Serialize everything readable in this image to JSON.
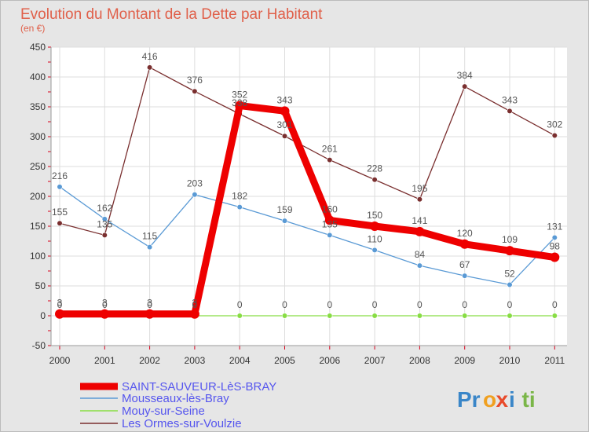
{
  "header": {
    "title": "Evolution du Montant de la Dette par Habitant",
    "subtitle": "(en €)"
  },
  "colors": {
    "background": "#e6e6e6",
    "plot_background": "#ffffff",
    "title": "#e0604a",
    "legend_text": "#5555ee",
    "axis_red_ticks": "#d9001b"
  },
  "logo": {
    "parts": [
      "Pr",
      "o",
      "x",
      "i",
      "ti"
    ],
    "colors": [
      "#3a86c8",
      "#f0a020",
      "#e84a2a",
      "#3a86c8",
      "#7ab648"
    ]
  },
  "chart_data": {
    "type": "line",
    "title": "Evolution du Montant de la Dette par Habitant",
    "subtitle": "(en €)",
    "xlabel": "",
    "ylabel": "",
    "categories": [
      "2000",
      "2001",
      "2002",
      "2003",
      "2004",
      "2005",
      "2006",
      "2007",
      "2008",
      "2009",
      "2010",
      "2011"
    ],
    "ylim": [
      -50,
      450
    ],
    "yticks": [
      "-50",
      "0",
      "50",
      "100",
      "150",
      "200",
      "250",
      "300",
      "350",
      "400",
      "450"
    ],
    "grid": true,
    "legend_position": "bottom-left",
    "series": [
      {
        "name": "SAINT-SAUVEUR-LèS-BRAY",
        "color": "#ee0000",
        "width": 9,
        "values": [
          3,
          3,
          3,
          3,
          352,
          343,
          160,
          150,
          141,
          120,
          109,
          98
        ],
        "labels": [
          "3",
          "3",
          "3",
          "3",
          "352",
          "343",
          "160",
          "150",
          "141",
          "120",
          "109",
          "98"
        ]
      },
      {
        "name": "Mousseaux-lès-Bray",
        "color": "#5a9ad5",
        "width": 1.3,
        "values": [
          216,
          162,
          115,
          203,
          182,
          159,
          135,
          110,
          84,
          67,
          52,
          131
        ],
        "labels": [
          "216",
          "162",
          "115",
          "203",
          "182",
          "159",
          "135",
          "110",
          "84",
          "67",
          "52",
          "131"
        ]
      },
      {
        "name": "Mouy-sur-Seine",
        "color": "#88dd44",
        "width": 1.3,
        "values": [
          0,
          0,
          0,
          0,
          0,
          0,
          0,
          0,
          0,
          0,
          0,
          0
        ],
        "labels": [
          "0",
          "0",
          "0",
          "0",
          "0",
          "0",
          "0",
          "0",
          "0",
          "0",
          "0",
          "0"
        ]
      },
      {
        "name": "Les Ormes-sur-Voulzie",
        "color": "#7a2f2f",
        "width": 1.3,
        "values": [
          155,
          135,
          416,
          376,
          338,
          301,
          261,
          228,
          195,
          384,
          343,
          302
        ],
        "labels": [
          "155",
          "135",
          "416",
          "376",
          "338",
          "301",
          "261",
          "228",
          "195",
          "384",
          "343",
          "302"
        ]
      }
    ]
  }
}
